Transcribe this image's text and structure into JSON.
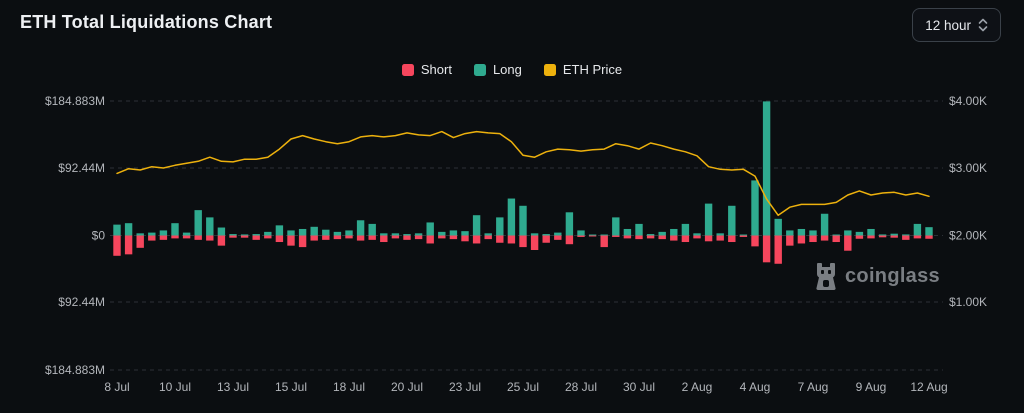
{
  "header": {
    "title": "ETH Total Liquidations Chart",
    "timeframe_selector": {
      "value": "12 hour",
      "icon": "updown-chevrons"
    }
  },
  "legend": [
    {
      "label": "Short",
      "color": "#f6465d"
    },
    {
      "label": "Long",
      "color": "#2faa8f"
    },
    {
      "label": "ETH Price",
      "color": "#edb10d"
    }
  ],
  "watermark": {
    "brand": "coinglass",
    "icon": "coinglass-owl-logo",
    "color": "#84888d"
  },
  "chart_data": {
    "type": "bar",
    "subtype": "mirrored liquidation bars (Long up, Short down) with ETH price line overlay",
    "interval": "12 hour",
    "title": "ETH Total Liquidations Chart",
    "left_axis": {
      "labels": [
        "$184.883M",
        "$92.44M",
        "$0",
        "$92.44M",
        "$184.883M"
      ],
      "unit": "USD millions, mirrored around $0",
      "max_abs_M": 184.883
    },
    "right_axis": {
      "labels": [
        "$4.00K",
        "$3.00K",
        "$2.00K",
        "$1.00K"
      ],
      "unit": "ETH price, USD thousands",
      "range_K": [
        0,
        4.55
      ]
    },
    "x_tick_labels": [
      "8 Jul",
      "10 Jul",
      "13 Jul",
      "15 Jul",
      "18 Jul",
      "20 Jul",
      "23 Jul",
      "25 Jul",
      "28 Jul",
      "30 Jul",
      "2 Aug",
      "4 Aug",
      "7 Aug",
      "9 Aug",
      "12 Aug"
    ],
    "x_tick_every_n_bars": 5,
    "grid": {
      "horizontal": true,
      "style": "dashed"
    },
    "series": [
      {
        "name": "Long",
        "color": "#2faa8f",
        "direction": "up",
        "unit": "$M",
        "values": [
          15,
          17,
          3,
          4,
          7,
          17,
          4,
          35,
          25,
          11,
          2,
          1.5,
          2,
          5,
          14,
          7,
          9,
          12,
          8,
          5,
          7,
          21,
          16,
          3,
          3,
          2,
          3,
          18,
          5,
          7,
          6,
          28,
          3,
          25,
          51,
          41,
          3,
          2,
          4,
          32,
          7,
          1,
          1,
          25,
          9,
          16,
          2,
          5,
          9,
          16,
          3,
          44,
          3,
          41,
          1,
          76,
          185,
          23,
          7,
          9,
          7,
          30,
          1,
          7,
          5,
          9,
          1.5,
          2.5,
          1.5,
          16,
          11.5
        ]
      },
      {
        "name": "Short",
        "color": "#f6465d",
        "direction": "down",
        "unit": "$M",
        "values": [
          28,
          26,
          17,
          7,
          6,
          4,
          4,
          6,
          7,
          14,
          3,
          3,
          6,
          4,
          9,
          14,
          16,
          7,
          6,
          5,
          4,
          7,
          6,
          9,
          4,
          6,
          5,
          11,
          4,
          5,
          8,
          11,
          5,
          10,
          11,
          16,
          20,
          10,
          6,
          12,
          2,
          1,
          16,
          2,
          4,
          5,
          4,
          5,
          7,
          9,
          4,
          8,
          7,
          9,
          2,
          15,
          37,
          39,
          14,
          11,
          9,
          7,
          9,
          21,
          4.5,
          4,
          2.5,
          3,
          6,
          4,
          4.5
        ]
      },
      {
        "name": "ETH Price",
        "color": "#edb10d",
        "type": "line",
        "unit": "$K",
        "values": [
          2.92,
          2.99,
          2.97,
          3.02,
          3.0,
          3.04,
          3.07,
          3.1,
          3.16,
          3.1,
          3.09,
          3.13,
          3.13,
          3.16,
          3.28,
          3.43,
          3.48,
          3.43,
          3.39,
          3.36,
          3.39,
          3.46,
          3.48,
          3.46,
          3.48,
          3.52,
          3.49,
          3.48,
          3.54,
          3.45,
          3.51,
          3.54,
          3.52,
          3.51,
          3.39,
          3.19,
          3.16,
          3.24,
          3.28,
          3.27,
          3.25,
          3.27,
          3.28,
          3.36,
          3.33,
          3.28,
          3.37,
          3.33,
          3.28,
          3.24,
          3.18,
          3.02,
          2.98,
          2.97,
          2.98,
          2.88,
          2.54,
          2.3,
          2.42,
          2.46,
          2.46,
          2.46,
          2.49,
          2.6,
          2.66,
          2.6,
          2.63,
          2.64,
          2.6,
          2.63,
          2.58
        ]
      }
    ],
    "annotations": {
      "peak_long_bar": {
        "near_x_label": "4 Aug",
        "value_M": 185
      }
    }
  },
  "style": {
    "background": "#0b0e11",
    "grid_color": "#2c3036",
    "axis_text_color": "#b3b6bb"
  }
}
